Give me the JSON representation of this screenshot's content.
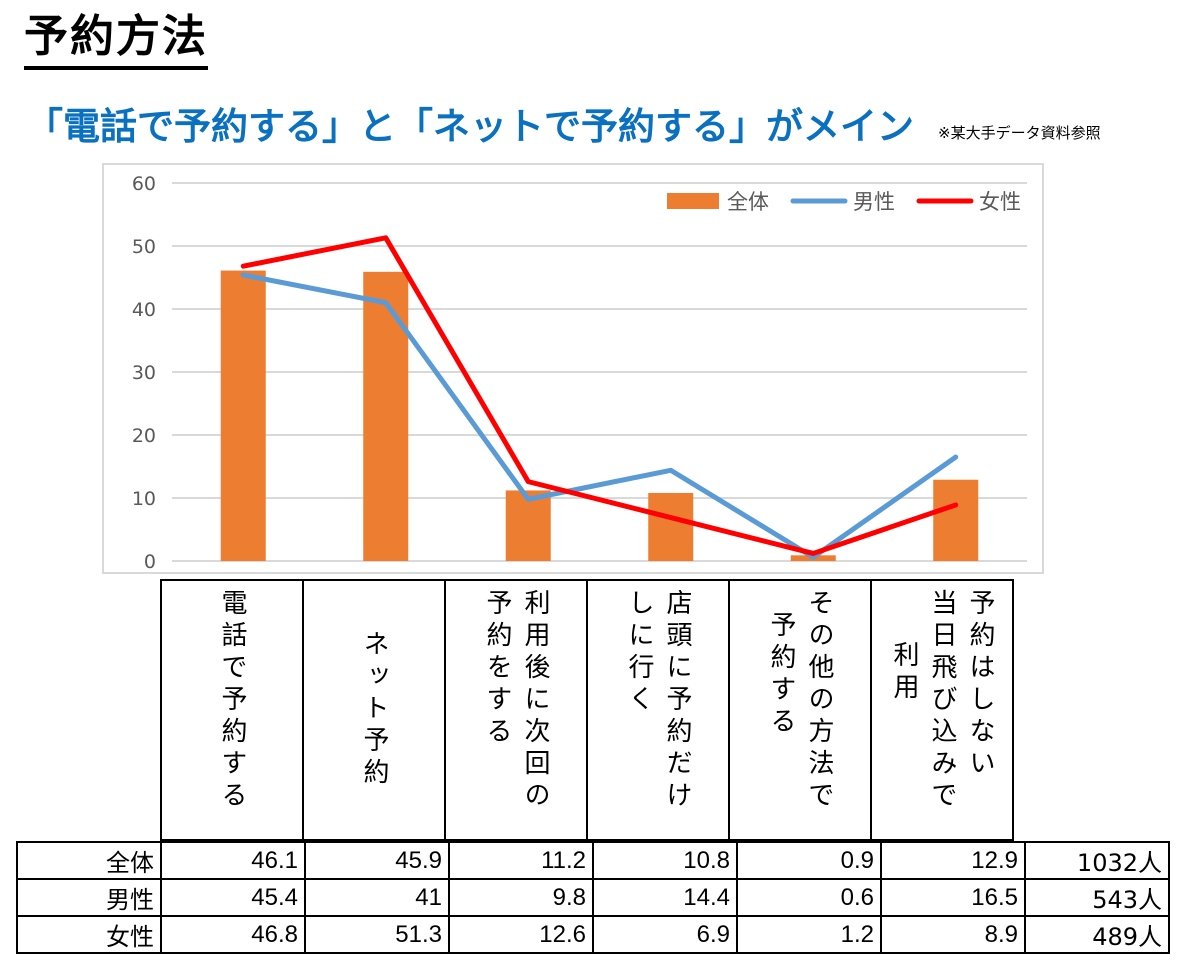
{
  "page": {
    "title": "予約方法",
    "subtitle": "「電話で予約する」と「ネットで予約する」がメイン",
    "source_note": "※某大手データ資料参照"
  },
  "colors": {
    "total_bar": "#ed7d31",
    "male_line": "#5b9bd5",
    "female_line": "#ff0000",
    "subtitle": "#0a70c0",
    "gridline": "#d9d9d9",
    "axis_text": "#595959"
  },
  "table": {
    "headers": [
      {
        "lines": [
          "電話で予約する"
        ]
      },
      {
        "lines": [
          "ネット予約"
        ]
      },
      {
        "lines": [
          "利用後に次回の",
          "予約をする"
        ]
      },
      {
        "lines": [
          "店頭に予約だけ",
          "しに行く"
        ]
      },
      {
        "lines": [
          "その他の方法で",
          "予約する"
        ]
      },
      {
        "lines": [
          "予約はしない",
          "当日飛び込みで",
          "利用"
        ]
      }
    ],
    "rows": [
      {
        "label": "全体",
        "values": [
          "46.1",
          "45.9",
          "11.2",
          "10.8",
          "0.9",
          "12.9"
        ],
        "count": "1032人"
      },
      {
        "label": "男性",
        "values": [
          "45.4",
          "41",
          "9.8",
          "14.4",
          "0.6",
          "16.5"
        ],
        "count": "543人"
      },
      {
        "label": "女性",
        "values": [
          "46.8",
          "51.3",
          "12.6",
          "6.9",
          "1.2",
          "8.9"
        ],
        "count": "489人"
      }
    ]
  },
  "chart_data": {
    "type": "bar",
    "title": "",
    "xlabel": "",
    "ylabel": "",
    "categories": [
      "電話で予約する",
      "ネット予約",
      "利用後に次回の予約をする",
      "店頭に予約だけしに行く",
      "その他の方法で予約する",
      "予約はしない当日飛び込みで利用"
    ],
    "series": [
      {
        "name": "全体",
        "type": "bar",
        "color": "#ed7d31",
        "values": [
          46.1,
          45.9,
          11.2,
          10.8,
          0.9,
          12.9
        ]
      },
      {
        "name": "男性",
        "type": "line",
        "color": "#5b9bd5",
        "values": [
          45.4,
          41,
          9.8,
          14.4,
          0.6,
          16.5
        ]
      },
      {
        "name": "女性",
        "type": "line",
        "color": "#ff0000",
        "values": [
          46.8,
          51.3,
          12.6,
          6.9,
          1.2,
          8.9
        ]
      }
    ],
    "ylim": [
      0,
      60
    ],
    "yticks": [
      "0",
      "10",
      "20",
      "30",
      "40",
      "50",
      "60"
    ],
    "grid": true,
    "legend_position": "top-right",
    "legend": [
      "全体",
      "男性",
      "女性"
    ]
  }
}
